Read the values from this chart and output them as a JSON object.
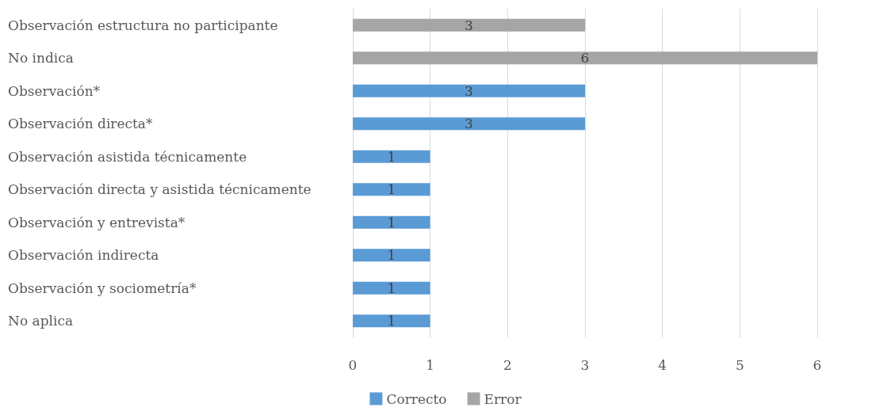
{
  "chart_data": {
    "type": "bar",
    "orientation": "horizontal",
    "stacked": true,
    "categories": [
      "Observación estructura no participante",
      "No indica",
      "Observación*",
      "Observación directa*",
      "Observación asistida técnicamente",
      "Observación directa y asistida técnicamente",
      "Observación y entrevista*",
      "Observación indirecta",
      "Observación y sociometría*",
      "No aplica"
    ],
    "series": [
      {
        "name": "Correcto",
        "color": "#5b9bd5",
        "values": [
          null,
          null,
          3,
          3,
          1,
          1,
          1,
          1,
          1,
          1
        ]
      },
      {
        "name": "Error",
        "color": "#a5a5a5",
        "values": [
          3,
          6,
          null,
          null,
          null,
          null,
          null,
          null,
          null,
          null
        ]
      }
    ],
    "xlim": [
      0,
      6
    ],
    "xticks": [
      0,
      1,
      2,
      3,
      4,
      5,
      6
    ],
    "grid": "x",
    "legend": "bottom",
    "data_labels": true
  }
}
